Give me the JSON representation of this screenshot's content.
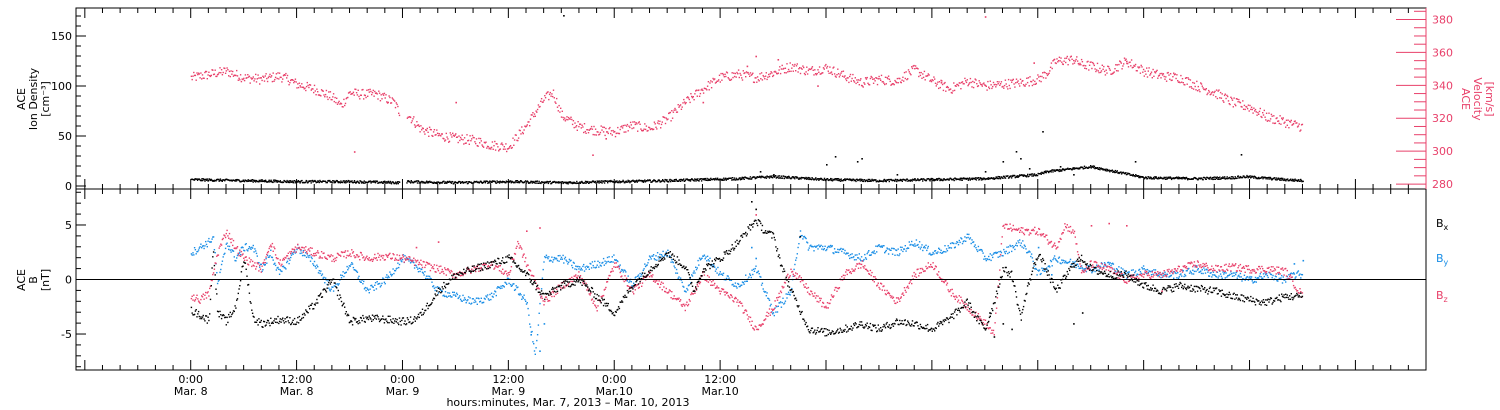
{
  "colors": {
    "density": "#000000",
    "velocity": "#e8406a",
    "bx": "#000000",
    "by": "#1a8ee6",
    "bz": "#e8406a",
    "axis": "#000000",
    "axis_right": "#e8406a"
  },
  "chart_data": [
    {
      "type": "scatter",
      "title": "",
      "ylabel": [
        "ACE",
        "Ion Density",
        "[cm⁻³]"
      ],
      "y2label": [
        "ACE",
        "Velocity",
        "[km/s]"
      ],
      "ylim": [
        -3,
        178
      ],
      "y2lim": [
        277,
        387
      ],
      "yticks": [
        0,
        50,
        100,
        150
      ],
      "y2ticks": [
        280,
        300,
        320,
        340,
        360,
        380
      ],
      "series": [
        {
          "axis": "left",
          "color": "#000000",
          "x_hours": [
            0,
            6,
            12,
            18,
            23.5,
            24.2,
            30,
            36,
            42,
            48,
            54,
            58,
            62,
            64,
            66,
            70,
            72,
            78,
            84,
            90,
            96,
            97,
            102,
            108,
            114,
            118,
            119.5,
            124,
            126
          ],
          "values": [
            7,
            6,
            5,
            5,
            4,
            5,
            4,
            5,
            4,
            5,
            6,
            7,
            8,
            9,
            10,
            8,
            7,
            6,
            7,
            8,
            12,
            15,
            20,
            9,
            8,
            9,
            10,
            7,
            6
          ],
          "points": [
            [
              42.2,
              171
            ],
            [
              90,
              15
            ],
            [
              92,
              25
            ],
            [
              93.5,
              35
            ],
            [
              94,
              28
            ],
            [
              95,
              18
            ],
            [
              96.5,
              55
            ],
            [
              98.5,
              20
            ],
            [
              100,
              12
            ],
            [
              64.5,
              15
            ],
            [
              66,
              12
            ],
            [
              72,
              22
            ],
            [
              73,
              30
            ],
            [
              75.5,
              25
            ],
            [
              76,
              28
            ],
            [
              80,
              12
            ],
            [
              107,
              25
            ],
            [
              119,
              32
            ]
          ]
        },
        {
          "axis": "right",
          "color": "#e8406a",
          "x_hours": [
            0,
            2,
            4,
            6,
            8,
            10,
            11,
            12,
            14,
            16,
            17,
            18,
            19,
            21,
            23,
            23.8,
            24.5,
            26,
            28,
            30,
            32,
            34,
            36,
            38,
            40,
            41,
            42,
            44,
            46,
            48,
            50,
            52,
            54,
            56,
            58,
            60,
            62,
            64,
            66,
            68,
            70,
            72,
            74,
            76,
            78,
            80,
            82,
            84,
            86,
            88,
            90,
            92,
            94,
            96,
            97,
            98,
            100,
            101,
            102,
            104,
            106,
            108,
            110,
            112,
            114,
            116,
            118,
            120,
            122,
            124,
            126
          ],
          "values": [
            345,
            347,
            349,
            345,
            344,
            346,
            344,
            341,
            338,
            333,
            328,
            336,
            335,
            335,
            330,
            322,
            323,
            314,
            310,
            308,
            307,
            304,
            303,
            316,
            332,
            336,
            322,
            315,
            313,
            312,
            316,
            314,
            320,
            330,
            338,
            345,
            347,
            345,
            348,
            352,
            349,
            351,
            346,
            342,
            344,
            343,
            350,
            343,
            338,
            343,
            340,
            341,
            342,
            344,
            348,
            355,
            356,
            353,
            352,
            349,
            355,
            349,
            346,
            345,
            340,
            336,
            330,
            327,
            321,
            318,
            315
          ],
          "points": [
            [
              63,
              352
            ],
            [
              66.5,
              356
            ],
            [
              90,
              382
            ],
            [
              95.5,
              354
            ],
            [
              45.5,
              298
            ],
            [
              47,
              308
            ],
            [
              18.5,
              300
            ],
            [
              30,
              330
            ],
            [
              58,
              330
            ],
            [
              64,
              358
            ],
            [
              71,
              340
            ],
            [
              106,
              355
            ],
            [
              85,
              342
            ]
          ]
        }
      ]
    },
    {
      "type": "scatter",
      "title": "",
      "ylabel": [
        "ACE",
        "B",
        "[nT]"
      ],
      "ylim": [
        -8.3,
        8.3
      ],
      "yticks": [
        -5,
        0,
        5
      ],
      "zero_line": true,
      "legend_position": "right",
      "series": [
        {
          "name_main": "B",
          "name_sub": "x",
          "color": "#000000",
          "x_hours": [
            0,
            1,
            2,
            2.5,
            3,
            4,
            5,
            6,
            7,
            8,
            10,
            12,
            14,
            16,
            18,
            20,
            22,
            24,
            25,
            26,
            28,
            30,
            32,
            34,
            36,
            38,
            40,
            42,
            44,
            46,
            48,
            50,
            52,
            54,
            56,
            57,
            58,
            60,
            62,
            63,
            64,
            65,
            66,
            67,
            68,
            70,
            72,
            74,
            76,
            78,
            80,
            82,
            84,
            86,
            88,
            89,
            90,
            91,
            92,
            93,
            94,
            95,
            96,
            98,
            100,
            101,
            102,
            104,
            106,
            108,
            110,
            112,
            114,
            116,
            118,
            120,
            121,
            122,
            124,
            126
          ],
          "values": [
            -2.8,
            -3.2,
            -3.7,
            3.0,
            -3.0,
            -3.8,
            -2.5,
            2.0,
            -3.5,
            -4.0,
            -3.6,
            -3.8,
            -2.2,
            0.0,
            -3.8,
            -3.5,
            -3.6,
            -3.8,
            -3.7,
            -3.2,
            -1.0,
            0.5,
            1.0,
            1.5,
            2.0,
            0.5,
            -1.5,
            -0.5,
            0.0,
            -1.5,
            -3.0,
            -0.5,
            1.0,
            2.5,
            1.2,
            -1.0,
            1.0,
            2.0,
            3.5,
            4.5,
            5.5,
            4.5,
            4.0,
            1.0,
            -1.0,
            -4.5,
            -4.8,
            -4.5,
            -4.0,
            -4.5,
            -3.8,
            -4.0,
            -4.5,
            -3.5,
            -2.0,
            -3.5,
            -4.5,
            -2.0,
            1.0,
            0.5,
            -3.5,
            0.0,
            2.5,
            -1.0,
            1.5,
            2.0,
            1.0,
            0.5,
            0.5,
            -0.5,
            -1.0,
            -0.5,
            -0.8,
            -1.0,
            -1.5,
            -1.8,
            -2.0,
            -2.0,
            -1.5,
            -1.5
          ],
          "points": [
            [
              63.5,
              7.2
            ],
            [
              64,
              6.5
            ],
            [
              90.5,
              -3.0
            ],
            [
              91,
              -5.2
            ],
            [
              92,
              -4.0
            ],
            [
              93,
              -4.5
            ],
            [
              69,
              4.0
            ],
            [
              100,
              -4.0
            ],
            [
              101,
              -3.0
            ]
          ]
        },
        {
          "name_main": "B",
          "name_sub": "y",
          "color": "#1a8ee6",
          "x_hours": [
            0,
            1,
            2,
            2.5,
            3,
            4,
            5,
            6,
            7,
            8,
            9,
            10,
            12,
            14,
            16,
            18,
            20,
            22,
            24,
            26,
            28,
            30,
            32,
            34,
            36,
            38,
            39,
            40,
            42,
            44,
            46,
            48,
            50,
            52,
            54,
            56,
            58,
            60,
            62,
            64,
            66,
            68,
            69,
            70,
            72,
            74,
            76,
            78,
            80,
            82,
            84,
            86,
            88,
            90,
            92,
            94,
            95,
            96,
            98,
            100,
            102,
            104,
            106,
            108,
            110,
            112,
            114,
            116,
            118,
            120,
            122,
            124,
            125,
            126
          ],
          "values": [
            2.5,
            3.0,
            3.5,
            4.0,
            -0.5,
            3.5,
            2.0,
            3.0,
            3.0,
            1.0,
            2.5,
            0.5,
            3.0,
            1.5,
            -1.0,
            1.5,
            -1.0,
            0.0,
            2.0,
            1.0,
            -1.0,
            -1.5,
            -2.0,
            -1.5,
            0.0,
            -2.0,
            -7.0,
            2.0,
            2.0,
            1.0,
            1.5,
            2.0,
            -0.5,
            2.0,
            2.5,
            -1.0,
            2.5,
            0.5,
            -0.5,
            1.0,
            -3.0,
            -1.0,
            4.5,
            3.0,
            3.0,
            2.5,
            2.0,
            3.0,
            2.5,
            3.5,
            2.5,
            3.0,
            4.0,
            2.0,
            2.5,
            3.5,
            2.5,
            0.5,
            2.0,
            1.5,
            1.0,
            1.5,
            0.5,
            1.0,
            0.5,
            0.5,
            1.0,
            0.5,
            0.5,
            0.0,
            0.5,
            0.0,
            0.5,
            0.5
          ],
          "points": [
            [
              39.5,
              -6.5
            ],
            [
              38.5,
              -5.0
            ],
            [
              40,
              -4.0
            ],
            [
              63.5,
              3.0
            ],
            [
              64,
              2.0
            ],
            [
              125,
              1.5
            ],
            [
              126,
              1.8
            ],
            [
              96,
              3.0
            ],
            [
              97.5,
              0.5
            ]
          ]
        },
        {
          "name_main": "B",
          "name_sub": "z",
          "color": "#e8406a",
          "x_hours": [
            0,
            1,
            2,
            3,
            4,
            5,
            6,
            7,
            8,
            9,
            10,
            12,
            14,
            16,
            18,
            20,
            22,
            24,
            26,
            28,
            30,
            32,
            34,
            36,
            37,
            38,
            40,
            42,
            44,
            46,
            48,
            50,
            52,
            54,
            56,
            58,
            60,
            62,
            64,
            66,
            68,
            70,
            72,
            74,
            76,
            78,
            80,
            82,
            84,
            86,
            88,
            90,
            91,
            92,
            94,
            96,
            98,
            99,
            100,
            101,
            102,
            104,
            106,
            108,
            110,
            112,
            114,
            116,
            118,
            120,
            122,
            124,
            126
          ],
          "values": [
            -1.5,
            -1.8,
            -1.2,
            2.5,
            4.5,
            3.0,
            2.0,
            1.5,
            1.0,
            3.5,
            1.5,
            3.0,
            2.5,
            2.0,
            2.5,
            2.0,
            2.2,
            2.0,
            1.5,
            1.0,
            0.5,
            1.0,
            1.5,
            0.5,
            3.5,
            1.5,
            -2.0,
            -0.5,
            0.5,
            -2.5,
            1.5,
            -1.0,
            0.5,
            -1.0,
            -2.5,
            0.5,
            -1.0,
            -2.0,
            -4.5,
            -2.5,
            1.0,
            -1.0,
            -2.5,
            0.5,
            1.5,
            -0.5,
            -2.0,
            0.5,
            1.5,
            -1.0,
            -2.5,
            -4.0,
            -5.0,
            5.0,
            4.5,
            4.5,
            3.0,
            5.0,
            4.5,
            0.5,
            1.5,
            1.0,
            0.0,
            0.5,
            0.5,
            1.0,
            1.5,
            1.0,
            1.2,
            1.0,
            1.0,
            0.8,
            -1.5
          ],
          "points": [
            [
              64,
              6.0
            ],
            [
              102,
              5.0
            ],
            [
              104,
              5.2
            ],
            [
              106,
              5.0
            ],
            [
              25.5,
              3.0
            ],
            [
              28,
              3.5
            ],
            [
              38,
              4.5
            ],
            [
              39.5,
              4.8
            ],
            [
              110,
              -1.0
            ]
          ]
        }
      ]
    }
  ],
  "xaxis": {
    "title": "hours:minutes,  Mar.  7, 2013 – Mar. 10, 2013",
    "start_hour": -13,
    "end_hour": 140,
    "labels": [
      {
        "hour": 0,
        "time": "0:00",
        "date": "Mar. 8"
      },
      {
        "hour": 12,
        "time": "12:00",
        "date": "Mar. 8"
      },
      {
        "hour": 24,
        "time": "0:00",
        "date": "Mar. 9"
      },
      {
        "hour": 36,
        "time": "12:00",
        "date": "Mar. 9"
      },
      {
        "hour": 48,
        "time": "0:00",
        "date": "Mar.10"
      },
      {
        "hour": 60,
        "time": "12:00",
        "date": "Mar.10"
      }
    ]
  }
}
